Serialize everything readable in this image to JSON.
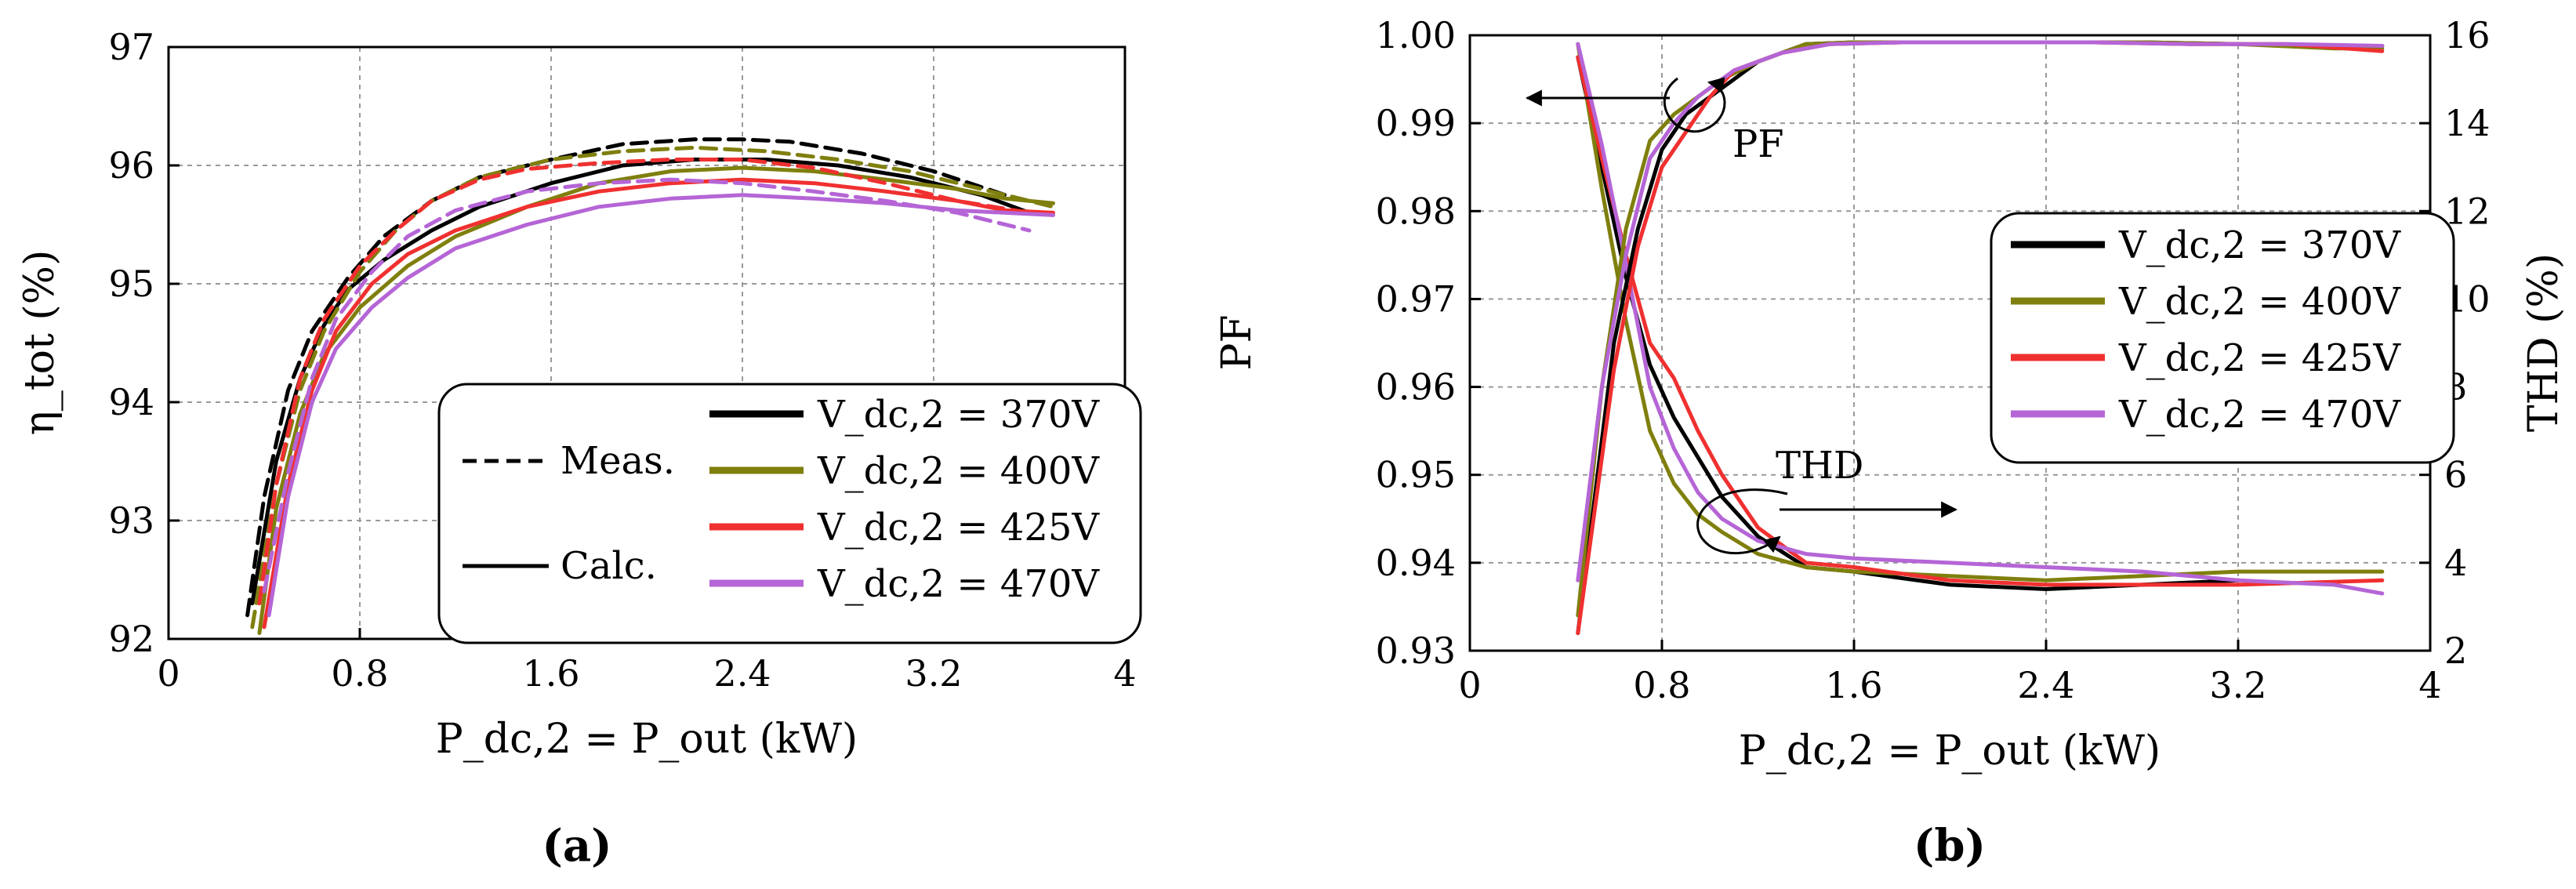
{
  "colors": {
    "370V": "#000000",
    "400V": "#7f7f0e",
    "425V": "#f03030",
    "470V": "#b565d6"
  },
  "panels": {
    "a": {
      "label": "(a)"
    },
    "b": {
      "label": "(b)"
    }
  },
  "chart_data": [
    {
      "id": "a",
      "type": "line",
      "xlabel": "P_dc,2 = P_out (kW)",
      "ylabel": "η_tot (%)",
      "xlim": [
        0,
        4
      ],
      "ylim": [
        92,
        97
      ],
      "xticks": [
        "0",
        "0.8",
        "1.6",
        "2.4",
        "3.2",
        "4"
      ],
      "yticks": [
        "92",
        "93",
        "94",
        "95",
        "96",
        "97"
      ],
      "grid": true,
      "legend": {
        "placement": "bottom-right",
        "style_entries": [
          {
            "label": "Meas.",
            "style": "dashed"
          },
          {
            "label": "Calc.",
            "style": "solid"
          }
        ],
        "series_entries": [
          "V_dc,2 = 370V",
          "V_dc,2 = 400V",
          "V_dc,2 = 425V",
          "V_dc,2 = 470V"
        ]
      },
      "series": [
        {
          "name": "V_dc,2 = 370V",
          "kind": "Meas.",
          "color_key": "370V",
          "dash": true,
          "x": [
            0.33,
            0.4,
            0.5,
            0.6,
            0.75,
            0.9,
            1.1,
            1.3,
            1.6,
            1.9,
            2.2,
            2.4,
            2.6,
            2.9,
            3.2,
            3.5
          ],
          "y": [
            92.2,
            93.2,
            94.1,
            94.6,
            95.05,
            95.4,
            95.7,
            95.9,
            96.05,
            96.18,
            96.22,
            96.22,
            96.2,
            96.1,
            95.95,
            95.75
          ]
        },
        {
          "name": "V_dc,2 = 370V",
          "kind": "Calc.",
          "color_key": "370V",
          "dash": false,
          "x": [
            0.35,
            0.45,
            0.55,
            0.65,
            0.75,
            0.9,
            1.1,
            1.3,
            1.6,
            1.9,
            2.2,
            2.5,
            2.8,
            3.1,
            3.4,
            3.6
          ],
          "y": [
            92.3,
            93.5,
            94.2,
            94.65,
            94.95,
            95.2,
            95.45,
            95.65,
            95.85,
            96.0,
            96.05,
            96.05,
            96.0,
            95.9,
            95.75,
            95.6
          ]
        },
        {
          "name": "V_dc,2 = 400V",
          "kind": "Meas.",
          "color_key": "400V",
          "dash": true,
          "x": [
            0.35,
            0.45,
            0.55,
            0.65,
            0.8,
            0.95,
            1.1,
            1.3,
            1.6,
            1.9,
            2.2,
            2.5,
            2.8,
            3.1,
            3.4,
            3.7
          ],
          "y": [
            92.1,
            93.3,
            94.1,
            94.6,
            95.1,
            95.45,
            95.7,
            95.9,
            96.05,
            96.12,
            96.15,
            96.12,
            96.05,
            95.95,
            95.8,
            95.65
          ]
        },
        {
          "name": "V_dc,2 = 400V",
          "kind": "Calc.",
          "color_key": "400V",
          "dash": false,
          "x": [
            0.38,
            0.45,
            0.55,
            0.65,
            0.8,
            1.0,
            1.2,
            1.5,
            1.8,
            2.1,
            2.4,
            2.7,
            3.0,
            3.3,
            3.5,
            3.7
          ],
          "y": [
            92.05,
            93.1,
            93.9,
            94.4,
            94.8,
            95.15,
            95.4,
            95.65,
            95.85,
            95.95,
            95.98,
            95.95,
            95.88,
            95.8,
            95.72,
            95.68
          ]
        },
        {
          "name": "V_dc,2 = 425V",
          "kind": "Meas.",
          "color_key": "425V",
          "dash": true,
          "x": [
            0.38,
            0.45,
            0.55,
            0.65,
            0.8,
            0.95,
            1.1,
            1.3,
            1.5,
            1.8,
            2.1,
            2.4,
            2.7,
            3.0,
            3.3,
            3.6
          ],
          "y": [
            92.3,
            93.3,
            94.2,
            94.7,
            95.15,
            95.45,
            95.7,
            95.88,
            95.97,
            96.02,
            96.05,
            96.05,
            95.98,
            95.85,
            95.7,
            95.6
          ]
        },
        {
          "name": "V_dc,2 = 425V",
          "kind": "Calc.",
          "color_key": "425V",
          "dash": false,
          "x": [
            0.4,
            0.5,
            0.6,
            0.7,
            0.85,
            1.0,
            1.2,
            1.5,
            1.8,
            2.1,
            2.4,
            2.7,
            3.0,
            3.3,
            3.5,
            3.7
          ],
          "y": [
            92.1,
            93.3,
            94.1,
            94.6,
            95.0,
            95.25,
            95.45,
            95.65,
            95.78,
            95.85,
            95.88,
            95.85,
            95.78,
            95.7,
            95.62,
            95.6
          ]
        },
        {
          "name": "V_dc,2 = 470V",
          "kind": "Meas.",
          "color_key": "470V",
          "dash": true,
          "x": [
            0.4,
            0.5,
            0.6,
            0.7,
            0.85,
            1.0,
            1.2,
            1.5,
            1.8,
            2.1,
            2.4,
            2.7,
            3.0,
            3.3,
            3.6
          ],
          "y": [
            92.4,
            93.4,
            94.2,
            94.7,
            95.1,
            95.4,
            95.62,
            95.78,
            95.85,
            95.88,
            95.85,
            95.78,
            95.7,
            95.6,
            95.45
          ]
        },
        {
          "name": "V_dc,2 = 470V",
          "kind": "Calc.",
          "color_key": "470V",
          "dash": false,
          "x": [
            0.42,
            0.5,
            0.6,
            0.7,
            0.85,
            1.0,
            1.2,
            1.5,
            1.8,
            2.1,
            2.4,
            2.7,
            3.0,
            3.3,
            3.5,
            3.7
          ],
          "y": [
            92.2,
            93.2,
            94.0,
            94.45,
            94.8,
            95.05,
            95.3,
            95.5,
            95.65,
            95.72,
            95.75,
            95.72,
            95.68,
            95.62,
            95.6,
            95.58
          ]
        }
      ]
    },
    {
      "id": "b",
      "type": "line",
      "xlabel": "P_dc,2 = P_out (kW)",
      "ylabel": "PF",
      "y2label": "THD (%)",
      "xlim": [
        0,
        4
      ],
      "ylim": [
        0.93,
        1.0
      ],
      "y2lim": [
        2,
        16
      ],
      "xticks": [
        "0",
        "0.8",
        "1.6",
        "2.4",
        "3.2",
        "4"
      ],
      "yticks": [
        "0.93",
        "0.94",
        "0.95",
        "0.96",
        "0.97",
        "0.98",
        "0.99",
        "1.00"
      ],
      "y2ticks": [
        "2",
        "4",
        "6",
        "8",
        "10",
        "12",
        "14",
        "16"
      ],
      "grid": true,
      "legend": {
        "placement": "right",
        "series_entries": [
          "V_dc,2 = 370V",
          "V_dc,2 = 400V",
          "V_dc,2 = 425V",
          "V_dc,2 = 470V"
        ]
      },
      "annotations": [
        {
          "text": "PF",
          "points_to": "left axis"
        },
        {
          "text": "THD",
          "points_to": "right axis"
        }
      ],
      "pf_series": [
        {
          "name": "V_dc,2 = 370V",
          "color_key": "370V",
          "x": [
            0.45,
            0.6,
            0.7,
            0.8,
            0.9,
            1.0,
            1.1,
            1.2,
            1.4,
            1.6,
            2.0,
            2.4,
            2.8,
            3.2,
            3.6,
            3.8
          ],
          "y": [
            0.932,
            0.965,
            0.978,
            0.987,
            0.991,
            0.993,
            0.995,
            0.997,
            0.999,
            0.9992,
            0.9992,
            0.9992,
            0.9992,
            0.999,
            0.9988,
            0.9988
          ]
        },
        {
          "name": "V_dc,2 = 400V",
          "color_key": "400V",
          "x": [
            0.45,
            0.55,
            0.65,
            0.75,
            0.85,
            0.95,
            1.05,
            1.2,
            1.4,
            1.6,
            2.0,
            2.4,
            2.8,
            3.2,
            3.6,
            3.8
          ],
          "y": [
            0.934,
            0.96,
            0.978,
            0.988,
            0.991,
            0.993,
            0.995,
            0.997,
            0.999,
            0.9992,
            0.9992,
            0.9992,
            0.9992,
            0.999,
            0.9985,
            0.9985
          ]
        },
        {
          "name": "V_dc,2 = 425V",
          "color_key": "425V",
          "x": [
            0.45,
            0.6,
            0.7,
            0.8,
            0.9,
            1.0,
            1.1,
            1.3,
            1.5,
            1.8,
            2.2,
            2.6,
            3.0,
            3.4,
            3.8
          ],
          "y": [
            0.932,
            0.962,
            0.976,
            0.985,
            0.989,
            0.993,
            0.996,
            0.998,
            0.999,
            0.9992,
            0.9992,
            0.9992,
            0.999,
            0.999,
            0.9982
          ]
        },
        {
          "name": "V_dc,2 = 470V",
          "color_key": "470V",
          "x": [
            0.45,
            0.55,
            0.65,
            0.75,
            0.85,
            0.95,
            1.1,
            1.3,
            1.5,
            1.8,
            2.2,
            2.6,
            3.0,
            3.4,
            3.8
          ],
          "y": [
            0.938,
            0.96,
            0.975,
            0.986,
            0.99,
            0.993,
            0.996,
            0.998,
            0.999,
            0.9992,
            0.9992,
            0.9992,
            0.999,
            0.999,
            0.9988
          ]
        }
      ],
      "thd_series": [
        {
          "name": "V_dc,2 = 370V",
          "color_key": "370V",
          "x": [
            0.45,
            0.55,
            0.65,
            0.75,
            0.85,
            0.95,
            1.05,
            1.2,
            1.4,
            1.6,
            2.0,
            2.4,
            2.8,
            3.2
          ],
          "y": [
            15.5,
            13.0,
            10.5,
            8.5,
            7.3,
            6.4,
            5.5,
            4.6,
            3.9,
            3.8,
            3.5,
            3.4,
            3.5,
            3.6
          ]
        },
        {
          "name": "V_dc,2 = 400V",
          "color_key": "400V",
          "x": [
            0.45,
            0.55,
            0.65,
            0.75,
            0.85,
            0.95,
            1.05,
            1.2,
            1.4,
            1.6,
            2.0,
            2.4,
            2.8,
            3.2,
            3.8
          ],
          "y": [
            15.8,
            12.5,
            9.5,
            7.0,
            5.8,
            5.1,
            4.7,
            4.2,
            3.9,
            3.8,
            3.7,
            3.6,
            3.7,
            3.8,
            3.8
          ]
        },
        {
          "name": "V_dc,2 = 425V",
          "color_key": "425V",
          "x": [
            0.45,
            0.55,
            0.65,
            0.75,
            0.85,
            0.95,
            1.05,
            1.2,
            1.4,
            1.6,
            2.0,
            2.4,
            2.8,
            3.2,
            3.8
          ],
          "y": [
            15.5,
            13.2,
            11.0,
            9.0,
            8.2,
            7.0,
            6.0,
            4.8,
            4.0,
            3.9,
            3.6,
            3.5,
            3.5,
            3.5,
            3.6
          ]
        },
        {
          "name": "V_dc,2 = 470V",
          "color_key": "470V",
          "x": [
            0.45,
            0.55,
            0.65,
            0.75,
            0.85,
            0.95,
            1.05,
            1.2,
            1.4,
            1.6,
            2.0,
            2.4,
            2.8,
            3.2,
            3.6,
            3.8
          ],
          "y": [
            15.8,
            13.5,
            10.8,
            8.0,
            6.6,
            5.6,
            5.0,
            4.5,
            4.2,
            4.1,
            4.0,
            3.9,
            3.8,
            3.6,
            3.5,
            3.3
          ]
        }
      ]
    }
  ]
}
